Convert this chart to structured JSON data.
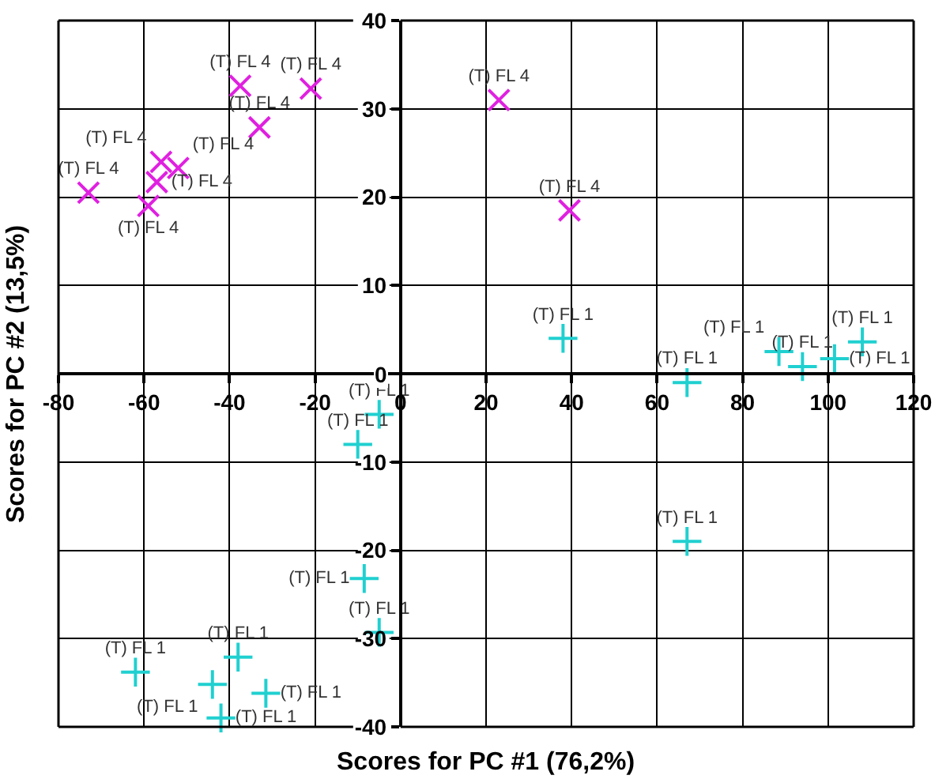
{
  "chart_data": {
    "type": "scatter",
    "xlabel": "Scores for PC #1 (76,2%)",
    "ylabel": "Scores for PC #2 (13,5%)",
    "xlim": [
      -80,
      120
    ],
    "xticks": [
      -80,
      -60,
      -40,
      -20,
      0,
      20,
      40,
      60,
      80,
      100,
      120
    ],
    "ylim": [
      -40,
      40
    ],
    "yticks": [
      -40,
      -30,
      -20,
      -10,
      0,
      10,
      20,
      30,
      40
    ],
    "grid": true,
    "legend": false,
    "series": [
      {
        "name": "(T) FL 4",
        "color": "#e020e0",
        "marker": "cross",
        "x": [
          -73,
          -59,
          -57,
          -56,
          -52,
          -37.5,
          -21,
          -33,
          23,
          39.5
        ],
        "values": [
          20.5,
          19,
          21.7,
          24,
          23.3,
          32.6,
          32.3,
          27.9,
          31,
          18.5
        ]
      },
      {
        "name": "(T) FL 1",
        "color": "#20d0d0",
        "marker": "plus",
        "x": [
          38,
          67,
          88.5,
          94,
          101.5,
          108,
          67,
          -5,
          -10,
          -8.5,
          -5,
          -62,
          -38,
          -44,
          -31.5,
          -42
        ],
        "values": [
          4,
          -1,
          2.5,
          0.8,
          1.7,
          3.6,
          -19,
          -4.6,
          -8,
          -23.2,
          -29.3,
          -33.8,
          -32.1,
          -35.2,
          -36.2,
          -39
        ]
      }
    ]
  }
}
